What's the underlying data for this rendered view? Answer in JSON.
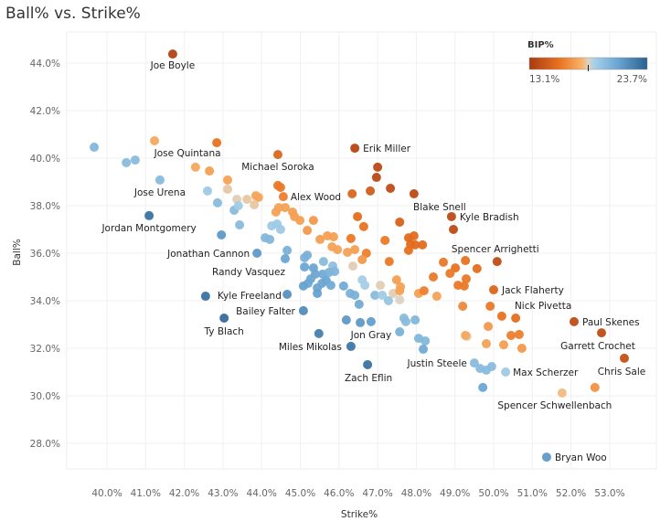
{
  "chart_data": {
    "type": "scatter",
    "title": "Ball% vs. Strike%",
    "xlabel": "Strike%",
    "ylabel": "Ball%",
    "xlim": [
      39.0,
      54.0
    ],
    "ylim": [
      26.9,
      45.3
    ],
    "x_ticks": [
      "40.0%",
      "41.0%",
      "42.0%",
      "43.0%",
      "44.0%",
      "45.0%",
      "46.0%",
      "47.0%",
      "48.0%",
      "49.0%",
      "50.0%",
      "51.0%",
      "52.0%",
      "53.0%"
    ],
    "x_tick_values": [
      40,
      41,
      42,
      43,
      44,
      45,
      46,
      47,
      48,
      49,
      50,
      51,
      52,
      53
    ],
    "y_ticks": [
      "44.0%",
      "42.0%",
      "40.0%",
      "38.0%",
      "36.0%",
      "34.0%",
      "32.0%",
      "30.0%",
      "28.0%"
    ],
    "y_tick_values": [
      44,
      42,
      40,
      38,
      36,
      34,
      32,
      30,
      28
    ],
    "grid": true,
    "legend": {
      "title": "BIP%",
      "min_label": "13.1%",
      "max_label": "23.7%",
      "min": 13.1,
      "max": 23.7,
      "center_marker": 18.4,
      "placement": "top-right",
      "colors": [
        "#a93a12",
        "#e8711f",
        "#f9b46a",
        "#dcd3c6",
        "#a9d0e8",
        "#6aa6d3",
        "#2a5f8f"
      ]
    },
    "point_fields": [
      "name",
      "strike_pct",
      "ball_pct",
      "bip_pct"
    ],
    "points": [
      [
        "Joe Boyle",
        41.7,
        44.38,
        13.5
      ],
      [
        "",
        39.67,
        40.46,
        20.2
      ],
      [
        "",
        41.23,
        40.73,
        17.5
      ],
      [
        "Jose Quintana",
        42.84,
        40.65,
        15.8
      ],
      [
        "Michael Soroka",
        44.42,
        40.15,
        15.2
      ],
      [
        "",
        40.5,
        39.81,
        20.0
      ],
      [
        "",
        40.73,
        39.92,
        20.0
      ],
      [
        "",
        42.29,
        39.62,
        17.5
      ],
      [
        "",
        42.65,
        39.46,
        17.2
      ],
      [
        "Jose Urena",
        41.37,
        39.08,
        20.0
      ],
      [
        "",
        43.12,
        39.08,
        17.3
      ],
      [
        "",
        43.12,
        38.69,
        18.2
      ],
      [
        "",
        42.6,
        38.62,
        19.3
      ],
      [
        "",
        44.42,
        38.85,
        16.0
      ],
      [
        "",
        44.49,
        38.77,
        16.0
      ],
      [
        "Alex Wood",
        44.56,
        38.38,
        16.2
      ],
      [
        "",
        43.36,
        38.27,
        18.3
      ],
      [
        "",
        43.62,
        38.27,
        18.2
      ],
      [
        "",
        43.85,
        38.42,
        17.4
      ],
      [
        "",
        43.92,
        38.35,
        17.4
      ],
      [
        "",
        43.81,
        38.04,
        18.2
      ],
      [
        "",
        42.86,
        38.12,
        20.0
      ],
      [
        "",
        43.29,
        37.81,
        20.0
      ],
      [
        "",
        43.4,
        38.0,
        19.2
      ],
      [
        "",
        44.44,
        37.92,
        17.3
      ],
      [
        "",
        44.61,
        37.92,
        17.3
      ],
      [
        "",
        44.37,
        37.73,
        17.3
      ],
      [
        "",
        44.8,
        37.73,
        17.2
      ],
      [
        "",
        44.85,
        37.54,
        17.2
      ],
      [
        "",
        44.99,
        37.38,
        17.2
      ],
      [
        "",
        45.34,
        37.38,
        17.0
      ],
      [
        "Jordan Montgomery",
        41.09,
        37.58,
        23.0
      ],
      [
        "",
        42.96,
        36.77,
        21.5
      ],
      [
        "",
        43.43,
        37.19,
        20.0
      ],
      [
        "",
        44.26,
        37.15,
        19.3
      ],
      [
        "",
        44.4,
        37.23,
        19.3
      ],
      [
        "",
        44.49,
        37.0,
        19.3
      ],
      [
        "",
        44.09,
        36.65,
        20.2
      ],
      [
        "",
        44.21,
        36.58,
        20.2
      ],
      [
        "Jonathan Cannon",
        43.88,
        36.0,
        21.5
      ],
      [
        "",
        44.66,
        36.12,
        20.5
      ],
      [
        "Randy Vasquez",
        44.61,
        35.77,
        21.0
      ],
      [
        "",
        45.18,
        36.96,
        17.0
      ],
      [
        "",
        45.51,
        36.58,
        17.2
      ],
      [
        "",
        45.7,
        36.73,
        17.2
      ],
      [
        "",
        45.86,
        36.69,
        17.2
      ],
      [
        "",
        46.31,
        36.62,
        16.0
      ],
      [
        "",
        46.48,
        37.54,
        15.6
      ],
      [
        "",
        46.64,
        37.12,
        15.8
      ],
      [
        "",
        47.0,
        39.62,
        13.8
      ],
      [
        "",
        46.97,
        39.19,
        13.8
      ],
      [
        "",
        47.33,
        38.73,
        14.0
      ],
      [
        "Blake Snell",
        47.94,
        38.5,
        13.9
      ],
      [
        "",
        46.81,
        38.62,
        14.8
      ],
      [
        "",
        46.34,
        38.5,
        15.2
      ],
      [
        "Erik Miller",
        46.41,
        40.42,
        13.7
      ],
      [
        "",
        47.57,
        37.31,
        15.0
      ],
      [
        "",
        47.19,
        36.54,
        16.0
      ],
      [
        "",
        47.8,
        36.65,
        15.5
      ],
      [
        "",
        47.94,
        36.73,
        15.5
      ],
      [
        "",
        47.85,
        36.38,
        15.5
      ],
      [
        "",
        47.97,
        36.35,
        15.5
      ],
      [
        "",
        48.16,
        36.35,
        15.5
      ],
      [
        "",
        47.8,
        36.12,
        15.7
      ],
      [
        "Kyle Bradish",
        48.91,
        37.54,
        13.9
      ],
      [
        "",
        48.96,
        37.0,
        13.9
      ],
      [
        "",
        45.82,
        36.27,
        17.3
      ],
      [
        "",
        45.96,
        36.15,
        17.3
      ],
      [
        "",
        46.22,
        36.04,
        17.3
      ],
      [
        "",
        46.41,
        36.15,
        17.2
      ],
      [
        "",
        46.71,
        36.0,
        16.2
      ],
      [
        "",
        45.11,
        35.81,
        20.5
      ],
      [
        "",
        45.18,
        35.92,
        20.5
      ],
      [
        "",
        45.6,
        35.65,
        20.0
      ],
      [
        "",
        45.84,
        35.46,
        19.8
      ],
      [
        "",
        46.36,
        35.46,
        18.3
      ],
      [
        "",
        46.6,
        35.73,
        17.0
      ],
      [
        "",
        47.3,
        35.65,
        16.0
      ],
      [
        "",
        45.11,
        35.42,
        21.0
      ],
      [
        "",
        45.34,
        35.38,
        21.0
      ],
      [
        "",
        45.39,
        35.12,
        21.0
      ],
      [
        "",
        45.27,
        34.92,
        21.0
      ],
      [
        "",
        45.2,
        34.73,
        21.0
      ],
      [
        "",
        45.08,
        34.62,
        21.2
      ],
      [
        "",
        45.58,
        35.12,
        20.8
      ],
      [
        "",
        45.74,
        35.19,
        20.5
      ],
      [
        "",
        45.89,
        35.23,
        20.3
      ],
      [
        "",
        45.67,
        34.85,
        21.0
      ],
      [
        "",
        45.56,
        34.73,
        21.0
      ],
      [
        "",
        45.44,
        34.54,
        21.0
      ],
      [
        "",
        45.44,
        34.31,
        21.2
      ],
      [
        "",
        45.79,
        34.65,
        20.8
      ],
      [
        "",
        44.66,
        34.27,
        21.8
      ],
      [
        "Kyle Freeland",
        42.55,
        34.19,
        23.0
      ],
      [
        "Bailey Falter",
        45.08,
        33.58,
        22.0
      ],
      [
        "Ty Blach",
        43.03,
        33.27,
        23.2
      ],
      [
        "",
        46.12,
        34.62,
        20.8
      ],
      [
        "",
        46.29,
        34.31,
        20.5
      ],
      [
        "",
        46.41,
        34.23,
        20.5
      ],
      [
        "",
        46.52,
        33.85,
        20.8
      ],
      [
        "",
        46.6,
        34.88,
        19.0
      ],
      [
        "",
        46.67,
        34.65,
        19.0
      ],
      [
        "",
        47.07,
        34.65,
        18.3
      ],
      [
        "",
        46.93,
        34.23,
        20.0
      ],
      [
        "",
        47.12,
        34.23,
        19.2
      ],
      [
        "",
        47.28,
        34.0,
        19.5
      ],
      [
        "",
        47.4,
        34.31,
        18.3
      ],
      [
        "",
        47.57,
        34.04,
        18.4
      ],
      [
        "",
        47.59,
        34.58,
        17.3
      ],
      [
        "",
        47.49,
        34.88,
        17.2
      ],
      [
        "",
        47.57,
        34.42,
        17.3
      ],
      [
        "",
        48.06,
        34.31,
        17.2
      ],
      [
        "",
        48.2,
        34.42,
        16.2
      ],
      [
        "",
        48.53,
        34.19,
        17.3
      ],
      [
        "",
        48.44,
        35.0,
        16.0
      ],
      [
        "",
        48.7,
        35.62,
        16.0
      ],
      [
        "",
        49.27,
        35.69,
        15.8
      ],
      [
        "Spencer Arrighetti",
        50.09,
        35.65,
        14.0
      ],
      [
        "",
        49.01,
        35.38,
        15.8
      ],
      [
        "",
        48.87,
        35.15,
        16.0
      ],
      [
        "",
        49.57,
        35.35,
        15.6
      ],
      [
        "",
        49.08,
        34.65,
        16.0
      ],
      [
        "",
        49.29,
        34.92,
        16.0
      ],
      [
        "",
        49.24,
        34.62,
        16.0
      ],
      [
        "Jack Flaherty",
        50.0,
        34.46,
        15.2
      ],
      [
        "",
        49.2,
        33.77,
        16.5
      ],
      [
        "",
        49.91,
        33.77,
        16.0
      ],
      [
        "",
        50.21,
        33.35,
        15.8
      ],
      [
        "Nick Pivetta",
        50.57,
        33.27,
        15.6
      ],
      [
        "",
        49.86,
        32.92,
        17.0
      ],
      [
        "Paul Skenes",
        52.08,
        33.12,
        14.0
      ],
      [
        "Garrett Crochet",
        52.79,
        32.65,
        14.0
      ],
      [
        "",
        49.31,
        32.5,
        18.3
      ],
      [
        "",
        50.45,
        32.54,
        16.2
      ],
      [
        "",
        50.66,
        32.58,
        16.2
      ],
      [
        "",
        49.81,
        32.19,
        17.3
      ],
      [
        "",
        50.26,
        32.15,
        17.2
      ],
      [
        "",
        50.73,
        32.0,
        17.0
      ],
      [
        "Chris Sale",
        53.38,
        31.58,
        14.2
      ],
      [
        "Justin Steele",
        49.5,
        31.38,
        20.0
      ],
      [
        "",
        49.65,
        31.15,
        20.0
      ],
      [
        "",
        49.81,
        31.08,
        20.0
      ],
      [
        "",
        49.95,
        31.23,
        20.0
      ],
      [
        "Max Scherzer",
        50.31,
        31.0,
        19.3
      ],
      [
        "",
        49.72,
        30.35,
        21.0
      ],
      [
        "Spencer Schwellenbach",
        51.77,
        30.12,
        18.0
      ],
      [
        "",
        52.62,
        30.35,
        16.8
      ],
      [
        "Bryan Woo",
        51.37,
        27.42,
        21.5
      ],
      [
        "",
        46.19,
        33.19,
        21.5
      ],
      [
        "",
        46.55,
        33.08,
        21.5
      ],
      [
        "Jon Gray",
        46.83,
        33.12,
        21.3
      ],
      [
        "",
        45.48,
        32.62,
        22.5
      ],
      [
        "",
        47.68,
        33.27,
        20.0
      ],
      [
        "",
        47.73,
        33.12,
        20.0
      ],
      [
        "",
        47.97,
        33.19,
        20.2
      ],
      [
        "",
        47.57,
        32.69,
        20.5
      ],
      [
        "Miles Mikolas",
        46.31,
        32.08,
        22.8
      ],
      [
        "",
        48.06,
        32.42,
        20.2
      ],
      [
        "",
        48.23,
        32.31,
        20.2
      ],
      [
        "",
        48.18,
        31.96,
        20.8
      ],
      [
        "Zach Eflin",
        46.74,
        31.31,
        23.0
      ],
      [
        "",
        49.27,
        32.54,
        17.5
      ]
    ]
  }
}
